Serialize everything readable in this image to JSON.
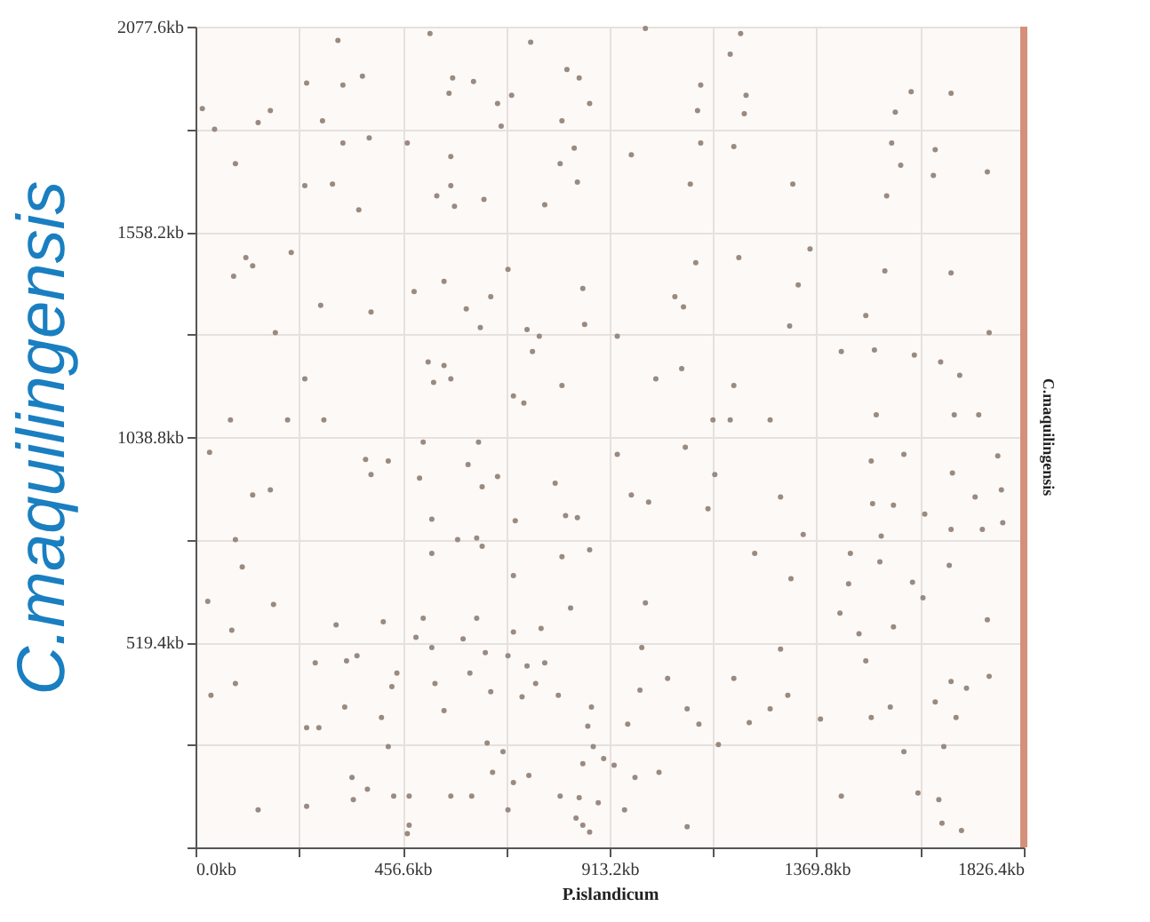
{
  "chart_data": {
    "type": "scatter",
    "xlabel": "P.islandicum",
    "ylabel": "C.maquilingensis",
    "y2label": "C.maquilingensis",
    "xlim": [
      0,
      1826.4
    ],
    "ylim": [
      0,
      2077.6
    ],
    "xticks": [
      {
        "value": 0,
        "label": "0.0kb"
      },
      {
        "value": 228.3,
        "label": null
      },
      {
        "value": 456.6,
        "label": "456.6kb"
      },
      {
        "value": 684.9,
        "label": null
      },
      {
        "value": 913.2,
        "label": "913.2kb"
      },
      {
        "value": 1141.5,
        "label": null
      },
      {
        "value": 1369.8,
        "label": "1369.8kb"
      },
      {
        "value": 1598.1,
        "label": null
      },
      {
        "value": 1826.4,
        "label": "1826.4kb"
      }
    ],
    "yticks": [
      {
        "value": 0,
        "label": null
      },
      {
        "value": 259.7,
        "label": null
      },
      {
        "value": 519.4,
        "label": "519.4kb"
      },
      {
        "value": 779.1,
        "label": null
      },
      {
        "value": 1038.8,
        "label": "1038.8kb"
      },
      {
        "value": 1298.5,
        "label": null
      },
      {
        "value": 1558.2,
        "label": "1558.2kb"
      },
      {
        "value": 1817.9,
        "label": null
      },
      {
        "value": 2077.6,
        "label": "2077.6kb"
      }
    ],
    "grid": true,
    "ref_lines": [
      {
        "axis": "x",
        "value": 1826.4,
        "color": "#d4907a"
      }
    ],
    "series": [
      {
        "color": "#9a8a80",
        "x": [
          314,
          517,
          739,
          15,
          165,
          138,
          368,
          325,
          245,
          567,
          559,
          613,
          697,
          666,
          819,
          846,
          869,
          808,
          42,
          280,
          325,
          383,
          467,
          674,
          835,
          804,
          88,
          563,
          241,
          302,
          360,
          563,
          532,
          571,
          636,
          770,
          842,
          111,
          126,
          211,
          84,
          276,
          387,
          482,
          548,
          597,
          651,
          689,
          628,
          854,
          858,
          176,
          731,
          758,
          743,
          513,
          548,
          525,
          563,
          241,
          701,
          724,
          808,
          77,
          203,
          283,
          992,
          1202,
          1179,
          1114,
          1107,
          1214,
          1210,
          1578,
          1543,
          1666,
          961,
          1114,
          1187,
          1091,
          1317,
          1535,
          1631,
          1555,
          1627,
          1746,
          1524,
          1103,
          1198,
          1057,
          1076,
          1329,
          1355,
          1520,
          1666,
          1478,
          930,
          1015,
          1072,
          1310,
          1424,
          1497,
          1585,
          1643,
          1685,
          1750,
          1187,
          1141,
          1179,
          1267,
          1501,
          1673,
          1727,
          31,
          126,
          165,
          375,
          425,
          387,
          502,
          624,
          601,
          666,
          494,
          632,
          793,
          521,
          705,
          816,
          842,
          88,
          103,
          578,
          620,
          632,
          521,
          808,
          869,
          701,
          27,
          172,
          80,
          310,
          414,
          502,
          620,
          762,
          701,
          827,
          486,
          590,
          521,
          639,
          333,
          356,
          264,
          444,
          528,
          605,
          689,
          731,
          770,
          750,
          34,
          88,
          433,
          651,
          720,
          800,
          548,
          410,
          329,
          245,
          272,
          873,
          865,
          643,
          678,
          877,
          425,
          655,
          735,
          701,
          854,
          900,
          345,
          379,
          348,
          138,
          245,
          437,
          471,
          563,
          609,
          689,
          804,
          846,
          888,
          839,
          854,
          869,
          471,
          467,
          930,
          1080,
          1145,
          961,
          999,
          1130,
          1290,
          1490,
          1562,
          1669,
          1769,
          1493,
          1539,
          1608,
          1719,
          1777,
          1666,
          1735,
          1780,
          1340,
          1512,
          1233,
          1444,
          1509,
          1662,
          1313,
          1440,
          1581,
          1604,
          992,
          1421,
          1746,
          1539,
          1463,
          984,
          1290,
          1478,
          1041,
          1187,
          980,
          1084,
          1306,
          1267,
          953,
          1110,
          1221,
          1378,
          1490,
          1532,
          1666,
          1700,
          1750,
          1631,
          1677,
          1153,
          1562,
          1650,
          923,
          969,
          1022,
          946,
          1084,
          1424,
          1593,
          1639,
          1646,
          1689
        ],
        "values": [
          2043,
          2060,
          2038,
          1870,
          1865,
          1835,
          1952,
          1930,
          1935,
          1948,
          1909,
          1939,
          1904,
          1883,
          1969,
          1948,
          1883,
          1839,
          1818,
          1839,
          1783,
          1796,
          1783,
          1826,
          1770,
          1731,
          1731,
          1749,
          1675,
          1679,
          1614,
          1675,
          1649,
          1623,
          1640,
          1627,
          1684,
          1493,
          1472,
          1506,
          1446,
          1372,
          1355,
          1407,
          1433,
          1363,
          1394,
          1463,
          1316,
          1415,
          1324,
          1303,
          1311,
          1294,
          1255,
          1229,
          1220,
          1177,
          1186,
          1186,
          1143,
          1125,
          1169,
          1082,
          1082,
          1082,
          2073,
          2060,
          2008,
          1930,
          1865,
          1904,
          1857,
          1913,
          1861,
          1909,
          1753,
          1783,
          1774,
          1679,
          1679,
          1783,
          1766,
          1727,
          1701,
          1710,
          1649,
          1480,
          1493,
          1394,
          1368,
          1424,
          1515,
          1459,
          1454,
          1346,
          1294,
          1186,
          1212,
          1320,
          1255,
          1259,
          1246,
          1229,
          1195,
          1303,
          1169,
          1082,
          1082,
          1082,
          1095,
          1095,
          1095,
          1000,
          892,
          905,
          982,
          978,
          944,
          1026,
          1026,
          969,
          939,
          935,
          913,
          922,
          831,
          827,
          840,
          835,
          779,
          710,
          779,
          783,
          762,
          744,
          736,
          753,
          688,
          623,
          615,
          550,
          563,
          571,
          580,
          580,
          554,
          545,
          606,
          532,
          528,
          506,
          493,
          472,
          485,
          467,
          441,
          415,
          441,
          485,
          459,
          467,
          415,
          385,
          415,
          407,
          394,
          381,
          385,
          346,
          329,
          355,
          303,
          303,
          355,
          307,
          264,
          242,
          255,
          255,
          190,
          182,
          164,
          212,
          225,
          177,
          147,
          121,
          95,
          104,
          130,
          130,
          130,
          130,
          95,
          130,
          126,
          113,
          74,
          56,
          39,
          56,
          35,
          995,
          1013,
          944,
          892,
          874,
          857,
          887,
          978,
          995,
          948,
          991,
          870,
          866,
          844,
          887,
          905,
          805,
          805,
          822,
          792,
          788,
          744,
          744,
          723,
          714,
          680,
          667,
          671,
          632,
          619,
          593,
          576,
          558,
          541,
          506,
          502,
          472,
          428,
          428,
          398,
          351,
          385,
          351,
          312,
          312,
          316,
          325,
          329,
          355,
          420,
          403,
          433,
          368,
          329,
          260,
          242,
          255,
          208,
          177,
          190,
          95,
          52,
          130,
          138,
          121,
          61,
          43
        ]
      }
    ]
  }
}
